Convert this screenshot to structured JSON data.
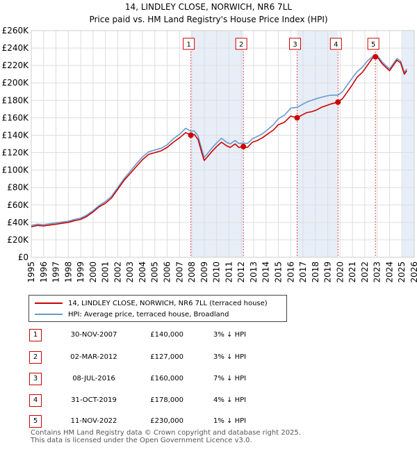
{
  "title_line1": "14, LINDLEY CLOSE, NORWICH, NR6 7LL",
  "title_line2": "Price paid vs. HM Land Registry's House Price Index (HPI)",
  "chart_data": {
    "type": "line",
    "xlim": [
      1995,
      2026
    ],
    "ylim": [
      0,
      260000
    ],
    "y_ticks": [
      0,
      20000,
      40000,
      60000,
      80000,
      100000,
      120000,
      140000,
      160000,
      180000,
      200000,
      220000,
      240000,
      260000
    ],
    "y_tick_labels": [
      "£0",
      "£20K",
      "£40K",
      "£60K",
      "£80K",
      "£100K",
      "£120K",
      "£140K",
      "£160K",
      "£180K",
      "£200K",
      "£220K",
      "£240K",
      "£260K"
    ],
    "x_ticks": [
      1995,
      1996,
      1997,
      1998,
      1999,
      2000,
      2001,
      2002,
      2003,
      2004,
      2005,
      2006,
      2007,
      2008,
      2009,
      2010,
      2011,
      2012,
      2013,
      2014,
      2015,
      2016,
      2017,
      2018,
      2019,
      2020,
      2021,
      2022,
      2023,
      2024,
      2025,
      2026
    ],
    "x_tick_labels": [
      "1995",
      "1996",
      "1997",
      "1998",
      "1999",
      "2000",
      "2001",
      "2002",
      "2003",
      "2004",
      "2005",
      "2006",
      "2007",
      "2008",
      "2009",
      "2010",
      "2011",
      "2012",
      "2013",
      "2014",
      "2015",
      "2016",
      "2017",
      "2018",
      "2019",
      "2020",
      "2021",
      "2022",
      "2023",
      "2024",
      "2025",
      "2026"
    ],
    "grid": true,
    "series": [
      {
        "name": "14, LINDLEY CLOSE, NORWICH, NR6 7LL (terraced house)",
        "color": "#cc0000",
        "x": [
          1995.0,
          1995.5,
          1996.0,
          1996.5,
          1997.0,
          1997.5,
          1998.0,
          1998.5,
          1999.0,
          1999.5,
          2000.0,
          2000.5,
          2001.0,
          2001.5,
          2002.0,
          2002.5,
          2003.0,
          2003.5,
          2004.0,
          2004.5,
          2005.0,
          2005.5,
          2006.0,
          2006.5,
          2007.0,
          2007.5,
          2007.92,
          2008.2,
          2008.5,
          2008.8,
          2009.0,
          2009.3,
          2009.6,
          2010.0,
          2010.4,
          2010.8,
          2011.1,
          2011.5,
          2011.8,
          2012.17,
          2012.5,
          2012.9,
          2013.3,
          2013.7,
          2014.1,
          2014.6,
          2015.0,
          2015.5,
          2016.0,
          2016.52,
          2016.9,
          2017.3,
          2017.7,
          2018.1,
          2018.5,
          2018.9,
          2019.3,
          2019.83,
          2020.2,
          2020.6,
          2021.0,
          2021.4,
          2021.8,
          2022.2,
          2022.6,
          2022.86,
          2023.1,
          2023.4,
          2023.7,
          2024.0,
          2024.3,
          2024.6,
          2024.9,
          2025.2,
          2025.4
        ],
        "values": [
          35000,
          36500,
          36000,
          37000,
          38000,
          39000,
          40000,
          42000,
          43500,
          47000,
          52000,
          58000,
          62000,
          68000,
          78000,
          88000,
          96000,
          104000,
          112000,
          118000,
          120000,
          122000,
          126000,
          132000,
          137000,
          143000,
          140000,
          141000,
          135000,
          120000,
          111000,
          116000,
          121000,
          127000,
          132000,
          128000,
          126000,
          130000,
          126000,
          127000,
          126000,
          132000,
          134000,
          137000,
          141000,
          146000,
          152000,
          155000,
          162000,
          160000,
          163000,
          166000,
          167000,
          169000,
          172000,
          174000,
          176000,
          178000,
          182000,
          190000,
          198000,
          207000,
          212000,
          220000,
          228000,
          230000,
          228000,
          222000,
          218000,
          214000,
          220000,
          226000,
          223000,
          210000,
          214000
        ]
      },
      {
        "name": "HPI: Average price, terraced house, Broadland",
        "color": "#6699cc",
        "x": [
          1995.0,
          1995.5,
          1996.0,
          1996.5,
          1997.0,
          1997.5,
          1998.0,
          1998.5,
          1999.0,
          1999.5,
          2000.0,
          2000.5,
          2001.0,
          2001.5,
          2002.0,
          2002.5,
          2003.0,
          2003.5,
          2004.0,
          2004.5,
          2005.0,
          2005.5,
          2006.0,
          2006.5,
          2007.0,
          2007.5,
          2007.92,
          2008.2,
          2008.5,
          2008.8,
          2009.0,
          2009.3,
          2009.6,
          2010.0,
          2010.4,
          2010.8,
          2011.1,
          2011.5,
          2011.8,
          2012.17,
          2012.5,
          2012.9,
          2013.3,
          2013.7,
          2014.1,
          2014.6,
          2015.0,
          2015.5,
          2016.0,
          2016.52,
          2016.9,
          2017.3,
          2017.7,
          2018.1,
          2018.5,
          2018.9,
          2019.3,
          2019.83,
          2020.2,
          2020.6,
          2021.0,
          2021.4,
          2021.8,
          2022.2,
          2022.6,
          2022.86,
          2023.1,
          2023.4,
          2023.7,
          2024.0,
          2024.3,
          2024.6,
          2024.9,
          2025.2,
          2025.4
        ],
        "values": [
          36500,
          38000,
          37500,
          38500,
          39500,
          40500,
          41500,
          43500,
          45000,
          48500,
          53500,
          59500,
          64000,
          70000,
          80000,
          90000,
          98500,
          107000,
          115000,
          121000,
          123000,
          125000,
          129000,
          136000,
          141000,
          148000,
          144500,
          145000,
          139000,
          124000,
          114500,
          119500,
          125000,
          131000,
          136500,
          132000,
          130000,
          134000,
          130500,
          131000,
          130500,
          136000,
          138500,
          141500,
          146000,
          152000,
          159000,
          163000,
          171000,
          172000,
          175000,
          178000,
          180000,
          182000,
          183500,
          185000,
          186000,
          186000,
          190000,
          198000,
          206000,
          213000,
          218000,
          225000,
          230000,
          232000,
          230000,
          224000,
          220000,
          216000,
          222000,
          228000,
          225000,
          212000,
          216000
        ]
      }
    ],
    "sales": [
      {
        "label": "1",
        "x": 2007.92,
        "value": 140000
      },
      {
        "label": "2",
        "x": 2012.17,
        "value": 127000
      },
      {
        "label": "3",
        "x": 2016.52,
        "value": 160000
      },
      {
        "label": "4",
        "x": 2019.83,
        "value": 178000
      },
      {
        "label": "5",
        "x": 2022.86,
        "value": 230000
      }
    ],
    "shaded_ranges": [
      [
        2007.92,
        2012.17
      ],
      [
        2016.52,
        2019.83
      ],
      [
        2025.0,
        2026.0
      ]
    ]
  },
  "legend": [
    {
      "label": "14, LINDLEY CLOSE, NORWICH, NR6 7LL (terraced house)",
      "color": "#cc0000"
    },
    {
      "label": "HPI: Average price, terraced house, Broadland",
      "color": "#6699cc"
    }
  ],
  "table": [
    {
      "num": "1",
      "date": "30-NOV-2007",
      "price": "£140,000",
      "hpi": "3% ↓ HPI"
    },
    {
      "num": "2",
      "date": "02-MAR-2012",
      "price": "£127,000",
      "hpi": "3% ↓ HPI"
    },
    {
      "num": "3",
      "date": "08-JUL-2016",
      "price": "£160,000",
      "hpi": "7% ↓ HPI"
    },
    {
      "num": "4",
      "date": "31-OCT-2019",
      "price": "£178,000",
      "hpi": "4% ↓ HPI"
    },
    {
      "num": "5",
      "date": "11-NOV-2022",
      "price": "£230,000",
      "hpi": "1% ↓ HPI"
    }
  ],
  "footer_line1": "Contains HM Land Registry data © Crown copyright and database right 2025.",
  "footer_line2": "This data is licensed under the Open Government Licence v3.0."
}
